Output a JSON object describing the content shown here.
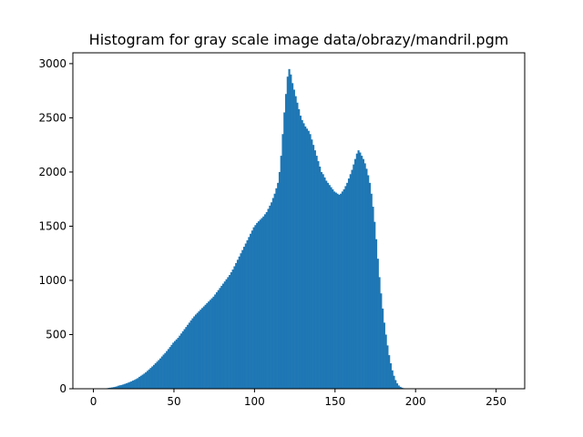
{
  "chart_data": {
    "type": "bar",
    "title": "Histogram for gray scale image data/obrazy/mandril.pgm",
    "xlabel": "",
    "ylabel": "",
    "xlim": [
      -12.75,
      267.75
    ],
    "ylim": [
      0,
      3100
    ],
    "x_ticks": [
      0,
      50,
      100,
      150,
      200,
      250
    ],
    "y_ticks": [
      0,
      500,
      1000,
      1500,
      2000,
      2500,
      3000
    ],
    "bar_color": "#1f77b4",
    "bin_start": 0,
    "bin_width": 1,
    "values": [
      0,
      0,
      0,
      0,
      0,
      0,
      0,
      2,
      5,
      8,
      10,
      12,
      15,
      18,
      22,
      28,
      32,
      35,
      40,
      45,
      50,
      56,
      62,
      68,
      75,
      82,
      90,
      98,
      110,
      120,
      130,
      140,
      152,
      165,
      178,
      192,
      206,
      220,
      235,
      250,
      265,
      280,
      298,
      315,
      330,
      348,
      366,
      385,
      405,
      425,
      440,
      455,
      470,
      490,
      510,
      530,
      550,
      570,
      590,
      610,
      630,
      650,
      668,
      685,
      700,
      715,
      730,
      745,
      760,
      775,
      790,
      805,
      820,
      835,
      850,
      870,
      890,
      910,
      930,
      950,
      970,
      990,
      1010,
      1030,
      1050,
      1075,
      1100,
      1130,
      1160,
      1190,
      1220,
      1250,
      1280,
      1310,
      1340,
      1370,
      1400,
      1430,
      1460,
      1490,
      1510,
      1530,
      1545,
      1560,
      1575,
      1590,
      1610,
      1630,
      1660,
      1690,
      1720,
      1760,
      1800,
      1850,
      1900,
      2000,
      2150,
      2350,
      2550,
      2720,
      2880,
      2950,
      2900,
      2820,
      2760,
      2700,
      2640,
      2580,
      2520,
      2480,
      2450,
      2420,
      2400,
      2380,
      2350,
      2300,
      2250,
      2200,
      2150,
      2100,
      2050,
      2000,
      1980,
      1950,
      1920,
      1900,
      1880,
      1860,
      1840,
      1820,
      1810,
      1800,
      1790,
      1800,
      1820,
      1840,
      1870,
      1900,
      1940,
      1980,
      2020,
      2070,
      2120,
      2170,
      2200,
      2180,
      2150,
      2120,
      2080,
      2030,
      1970,
      1900,
      1800,
      1680,
      1540,
      1380,
      1200,
      1030,
      880,
      740,
      610,
      500,
      400,
      310,
      235,
      170,
      120,
      80,
      50,
      30,
      18,
      10,
      5,
      2,
      1,
      0,
      0,
      0,
      0,
      0,
      0,
      0,
      0,
      0,
      0,
      0,
      0,
      0,
      0,
      0,
      0,
      0,
      0,
      0,
      0,
      0,
      0,
      0,
      0,
      0,
      0,
      0,
      0,
      0,
      0,
      0,
      0,
      0,
      0,
      0,
      0,
      0,
      0,
      0,
      0,
      0,
      0,
      0,
      0,
      0,
      0,
      0,
      0,
      0,
      0,
      0,
      0,
      0,
      0,
      0,
      0,
      0,
      0,
      0,
      0,
      0,
      0,
      0,
      0,
      0,
      0,
      0,
      0,
      0
    ]
  }
}
